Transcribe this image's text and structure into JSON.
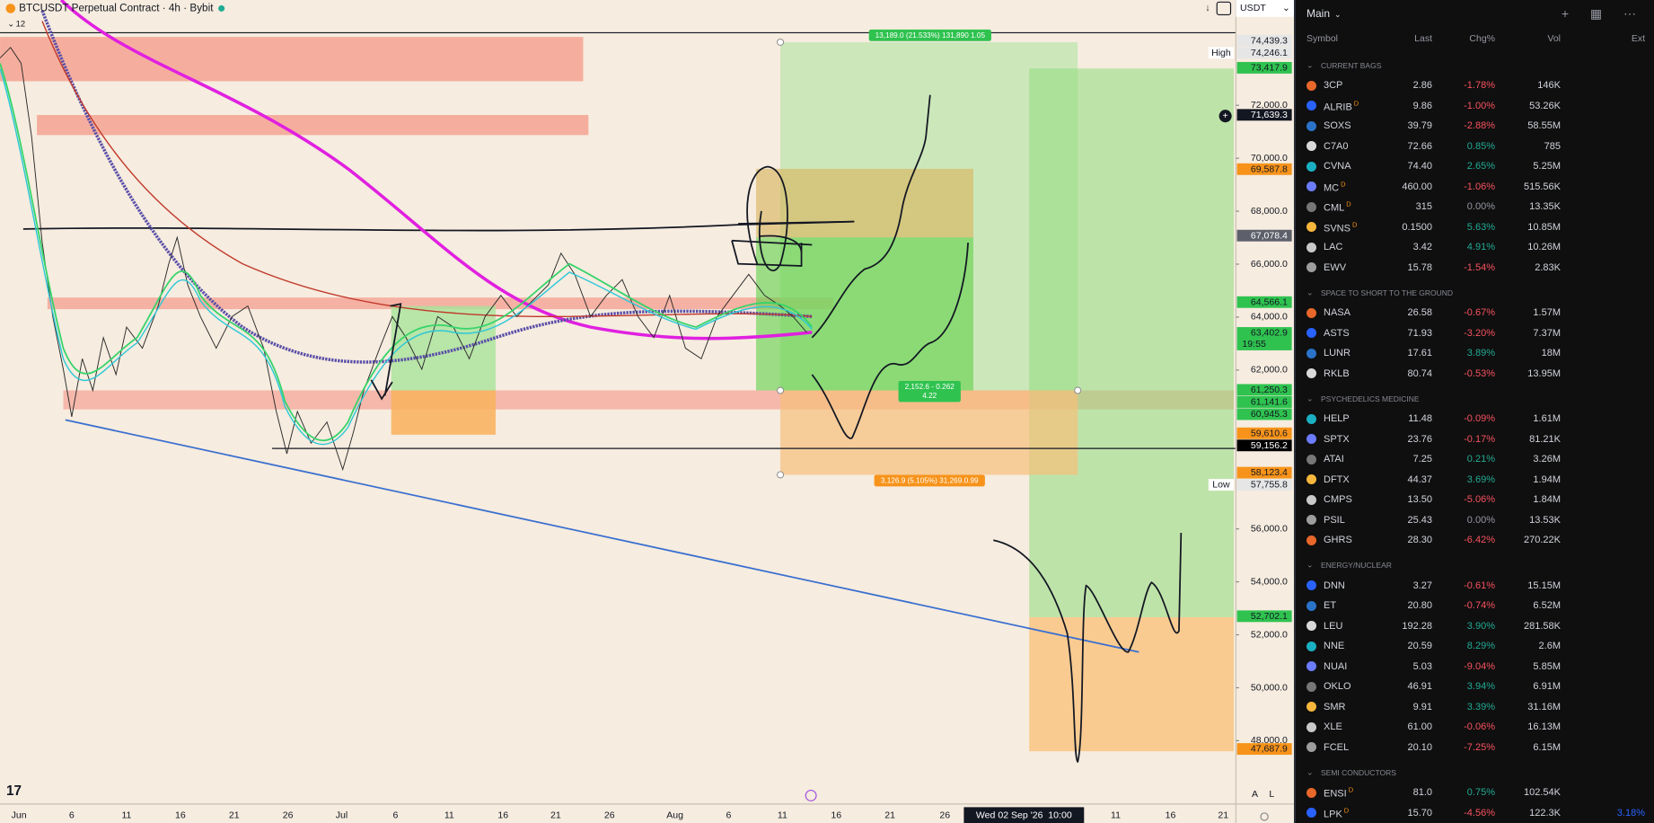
{
  "header": {
    "symbol": "BTCUSDT Perpetual Contract · 4h · Bybit",
    "indicator_count": "12"
  },
  "chart": {
    "price_axis": {
      "currency": "USDT",
      "ticks": [
        {
          "value": 72000,
          "label": "72,000.0"
        },
        {
          "value": 70000,
          "label": "70,000.0"
        },
        {
          "value": 68000,
          "label": "68,000.0"
        },
        {
          "value": 66000,
          "label": "66,000.0"
        },
        {
          "value": 64000,
          "label": "64,000.0"
        },
        {
          "value": 62000,
          "label": "62,000.0"
        },
        {
          "value": 56000,
          "label": "56,000.0"
        },
        {
          "value": 54000,
          "label": "54,000.0"
        },
        {
          "value": 52000,
          "label": "52,000.0"
        },
        {
          "value": 50000,
          "label": "50,000.0"
        },
        {
          "value": 48000,
          "label": "48,000.0"
        }
      ],
      "labels": [
        {
          "value": 74439.3,
          "label": "74,439.3",
          "color": "#e6e6e6",
          "text_color": "#131722"
        },
        {
          "value": 74246.1,
          "label": "74,246.1",
          "color": "#e6e6e6",
          "text_color": "#131722",
          "tag": "High"
        },
        {
          "value": 73417.9,
          "label": "73,417.9",
          "color": "#2fc24f",
          "text_color": "#131722"
        },
        {
          "value": 71639.3,
          "label": "71,639.3",
          "color": "#131722",
          "text_color": "#ffffff"
        },
        {
          "value": 69587.8,
          "label": "69,587.8",
          "color": "#f7931a",
          "text_color": "#131722"
        },
        {
          "value": 67078.4,
          "label": "67,078.4",
          "color": "#5d606b",
          "text_color": "#ffffff"
        },
        {
          "value": 64566.1,
          "label": "64,566.1",
          "color": "#2fc24f",
          "text_color": "#131722"
        },
        {
          "value": 63402.9,
          "label": "63,402.9",
          "color": "#2fc24f",
          "text_color": "#131722",
          "sub": "19:55"
        },
        {
          "value": 61250.3,
          "label": "61,250.3",
          "color": "#2fc24f",
          "text_color": "#131722"
        },
        {
          "value": 61141.6,
          "label": "61,141.6",
          "color": "#2fc24f",
          "text_color": "#131722"
        },
        {
          "value": 60945.3,
          "label": "60,945.3",
          "color": "#2fc24f",
          "text_color": "#131722"
        },
        {
          "value": 59610.6,
          "label": "59,610.6",
          "color": "#f7931a",
          "text_color": "#131722"
        },
        {
          "value": 59156.2,
          "label": "59,156.2",
          "color": "#000000",
          "text_color": "#ffffff"
        },
        {
          "value": 58123.4,
          "label": "58,123.4",
          "color": "#f7931a",
          "text_color": "#131722"
        },
        {
          "value": 57755.8,
          "label": "57,755.8",
          "color": "#e6e6e6",
          "text_color": "#131722",
          "tag": "Low"
        },
        {
          "value": 52702.1,
          "label": "52,702.1",
          "color": "#2fc24f",
          "text_color": "#131722"
        },
        {
          "value": 47687.9,
          "label": "47,687.9",
          "color": "#f7931a",
          "text_color": "#131722"
        }
      ]
    },
    "time_axis": {
      "labels": [
        "Jun",
        "6",
        "11",
        "16",
        "21",
        "26",
        "Jul",
        "6",
        "11",
        "16",
        "21",
        "26",
        "Aug",
        "6",
        "11",
        "16",
        "21",
        "26",
        "11",
        "16",
        "21"
      ]
    },
    "crosshair_time": "Wed 02 Sep '26  10:00",
    "positions": {
      "target": "13,189.0 (21.533%) 131,890 1.05",
      "risk_reward": [
        "2,152.6 - 0.262",
        "4.22"
      ],
      "stop": "3,126.9 (5.105%) 31,269.0.99"
    },
    "axis_buttons": [
      "A",
      "L"
    ]
  },
  "watchlist": {
    "title": "Main",
    "columns": [
      "Symbol",
      "Last",
      "Chg%",
      "Vol",
      "Ext"
    ],
    "groups": [
      {
        "name": "CURRENT BAGS",
        "rows": [
          {
            "symbol": "3CP",
            "last": "2.86",
            "chg": "-1.78%",
            "vol": "146K"
          },
          {
            "symbol": "ALRIB",
            "flag": "D",
            "last": "9.86",
            "chg": "-1.00%",
            "vol": "53.26K"
          },
          {
            "symbol": "SOXS",
            "last": "39.79",
            "chg": "-2.88%",
            "vol": "58.55M"
          },
          {
            "symbol": "C7A0",
            "last": "72.66",
            "chg": "0.85%",
            "vol": "785"
          },
          {
            "symbol": "CVNA",
            "last": "74.40",
            "chg": "2.65%",
            "vol": "5.25M"
          },
          {
            "symbol": "MC",
            "flag": "D",
            "last": "460.00",
            "chg": "-1.06%",
            "vol": "515.56K"
          },
          {
            "symbol": "CML",
            "flag": "D",
            "last": "315",
            "chg": "0.00%",
            "vol": "13.35K"
          },
          {
            "symbol": "SVNS",
            "flag": "D",
            "last": "0.1500",
            "chg": "5.63%",
            "vol": "10.85M"
          },
          {
            "symbol": "LAC",
            "last": "3.42",
            "chg": "4.91%",
            "vol": "10.26M"
          },
          {
            "symbol": "EWV",
            "last": "15.78",
            "chg": "-1.54%",
            "vol": "2.83K"
          }
        ]
      },
      {
        "name": "SPACE TO SHORT TO THE GROUND",
        "rows": [
          {
            "symbol": "NASA",
            "last": "26.58",
            "chg": "-0.67%",
            "vol": "1.57M"
          },
          {
            "symbol": "ASTS",
            "last": "71.93",
            "chg": "-3.20%",
            "vol": "7.37M"
          },
          {
            "symbol": "LUNR",
            "last": "17.61",
            "chg": "3.89%",
            "vol": "18M"
          },
          {
            "symbol": "RKLB",
            "last": "80.74",
            "chg": "-0.53%",
            "vol": "13.95M"
          }
        ]
      },
      {
        "name": "PSYCHEDELICS MEDICINE",
        "rows": [
          {
            "symbol": "HELP",
            "last": "11.48",
            "chg": "-0.09%",
            "vol": "1.61M"
          },
          {
            "symbol": "SPTX",
            "last": "23.76",
            "chg": "-0.17%",
            "vol": "81.21K"
          },
          {
            "symbol": "ATAI",
            "last": "7.25",
            "chg": "0.21%",
            "vol": "3.26M"
          },
          {
            "symbol": "DFTX",
            "last": "44.37",
            "chg": "3.69%",
            "vol": "1.94M"
          },
          {
            "symbol": "CMPS",
            "last": "13.50",
            "chg": "-5.06%",
            "vol": "1.84M"
          },
          {
            "symbol": "PSIL",
            "last": "25.43",
            "chg": "0.00%",
            "vol": "13.53K"
          },
          {
            "symbol": "GHRS",
            "last": "28.30",
            "chg": "-6.42%",
            "vol": "270.22K"
          }
        ]
      },
      {
        "name": "ENERGY/NUCLEAR",
        "rows": [
          {
            "symbol": "DNN",
            "last": "3.27",
            "chg": "-0.61%",
            "vol": "15.15M"
          },
          {
            "symbol": "ET",
            "last": "20.80",
            "chg": "-0.74%",
            "vol": "6.52M"
          },
          {
            "symbol": "LEU",
            "last": "192.28",
            "chg": "3.90%",
            "vol": "281.58K"
          },
          {
            "symbol": "NNE",
            "last": "20.59",
            "chg": "8.29%",
            "vol": "2.6M"
          },
          {
            "symbol": "NUAI",
            "last": "5.03",
            "chg": "-9.04%",
            "vol": "5.85M"
          },
          {
            "symbol": "OKLO",
            "last": "46.91",
            "chg": "3.94%",
            "vol": "6.91M"
          },
          {
            "symbol": "SMR",
            "last": "9.91",
            "chg": "3.39%",
            "vol": "31.16M"
          },
          {
            "symbol": "XLE",
            "last": "61.00",
            "chg": "-0.06%",
            "vol": "16.13M"
          },
          {
            "symbol": "FCEL",
            "last": "20.10",
            "chg": "-7.25%",
            "vol": "6.15M"
          }
        ]
      },
      {
        "name": "SEMI CONDUCTORS",
        "rows": [
          {
            "symbol": "ENSI",
            "flag": "D",
            "last": "81.0",
            "chg": "0.75%",
            "vol": "102.54K"
          },
          {
            "symbol": "LPK",
            "flag": "D",
            "last": "15.70",
            "chg": "-4.56%",
            "vol": "122.3K",
            "ext": "3.18%"
          }
        ]
      }
    ]
  }
}
